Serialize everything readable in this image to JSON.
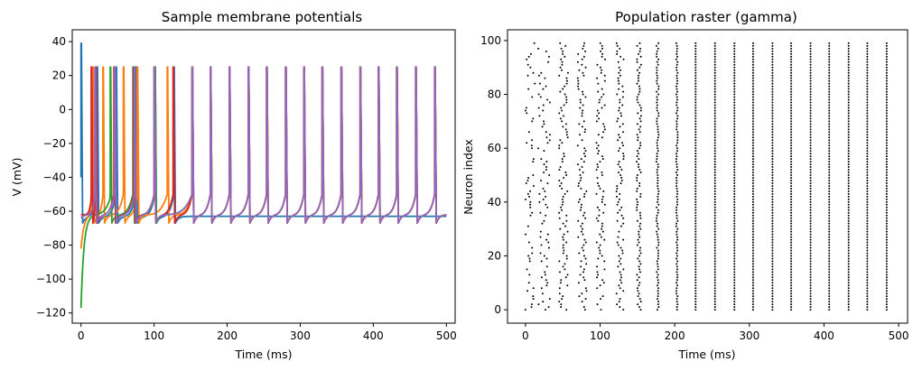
{
  "chart_data": [
    {
      "type": "line",
      "title": "Sample membrane potentials",
      "xlabel": "Time (ms)",
      "ylabel": "V (mV)",
      "xlim": [
        -12,
        512
      ],
      "ylim": [
        -126,
        47
      ],
      "xticks": [
        0,
        100,
        200,
        300,
        400,
        500
      ],
      "yticks": [
        -120,
        -100,
        -80,
        -60,
        -40,
        -20,
        0,
        20,
        40
      ],
      "grid": false,
      "legend": "none",
      "spike_peak_mV": 25,
      "spike_trough_mV": -67,
      "series": [
        {
          "color": "#1f77b4",
          "start_mV": -40,
          "first_peak_mV": 39,
          "rest_mV": -63,
          "spike_times_ms": [
            0,
            22,
            48,
            75,
            101,
            127
          ]
        },
        {
          "color": "#ff7f0e",
          "start_mV": -82,
          "rest_mV": -62,
          "spike_times_ms": [
            16,
            30,
            58,
            77,
            118,
            152,
            177,
            203,
            229,
            254,
            280,
            305,
            330,
            356,
            382,
            407,
            432,
            458,
            484
          ]
        },
        {
          "color": "#2ca02c",
          "start_mV": -117,
          "rest_mV": -62,
          "spike_times_ms": [
            40,
            71,
            101,
            152,
            177,
            203,
            229,
            254,
            280,
            305,
            330,
            356,
            382,
            407,
            432,
            458,
            484
          ]
        },
        {
          "color": "#d62728",
          "start_mV": -62,
          "rest_mV": -62,
          "spike_times_ms": [
            14,
            20,
            45,
            72,
            100,
            126,
            152,
            177,
            203,
            229,
            254,
            280,
            305,
            330,
            356,
            382,
            407,
            432,
            458,
            484
          ]
        },
        {
          "color": "#9467bd",
          "start_mV": -64,
          "rest_mV": -62,
          "spike_times_ms": [
            19,
            46,
            73,
            100,
            152,
            177,
            203,
            229,
            254,
            280,
            305,
            330,
            356,
            382,
            407,
            432,
            458,
            484
          ]
        }
      ]
    },
    {
      "type": "scatter",
      "title": "Population raster (gamma)",
      "xlabel": "Time (ms)",
      "ylabel": "Neuron index",
      "xlim": [
        -24,
        512
      ],
      "ylim": [
        -5,
        104
      ],
      "xticks": [
        0,
        100,
        200,
        300,
        400,
        500
      ],
      "yticks": [
        0,
        20,
        40,
        60,
        80,
        100
      ],
      "grid": false,
      "marker_color": "#000000",
      "neuron_count": 100,
      "cycle_times_ms": [
        0,
        25,
        51,
        76,
        101,
        127,
        152,
        177,
        203,
        228,
        254,
        280,
        305,
        331,
        356,
        382,
        407,
        433,
        458,
        484
      ],
      "cycle_jitter_ms": [
        8,
        8,
        6,
        6,
        6,
        5,
        3,
        1.5,
        1,
        0,
        0,
        0,
        0,
        0,
        0,
        0,
        0,
        0,
        0,
        0
      ]
    }
  ]
}
